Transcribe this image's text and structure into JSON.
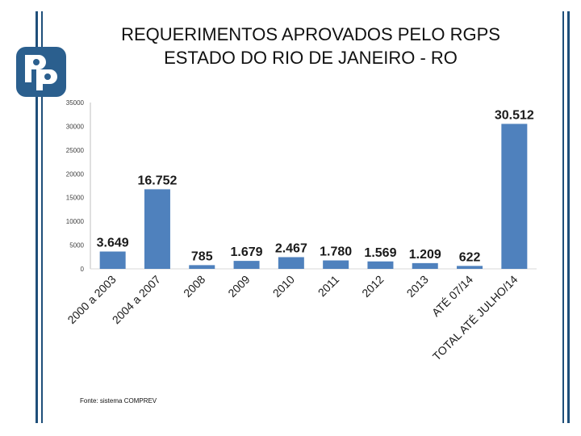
{
  "slide": {
    "title_line1": "REQUERIMENTOS APROVADOS PELO RGPS",
    "title_line2": "ESTADO DO RIO DE JANEIRO - RO",
    "source": "Fonte: sistema COMPREV"
  },
  "logo": {
    "icon": "pp-brand-logo",
    "color": "#2b5f8e"
  },
  "colors": {
    "bar": "#4f81bd",
    "accent": "#1f4f7a"
  },
  "chart_data": {
    "type": "bar",
    "categories": [
      "2000 a 2003",
      "2004 a 2007",
      "2008",
      "2009",
      "2010",
      "2011",
      "2012",
      "2013",
      "ATÉ 07/14",
      "TOTAL ATÉ JULHO/14"
    ],
    "values": [
      3649,
      16752,
      785,
      1679,
      2467,
      1780,
      1569,
      1209,
      622,
      30512
    ],
    "value_labels": [
      "3.649",
      "16.752",
      "785",
      "1.679",
      "2.467",
      "1.780",
      "1.569",
      "1.209",
      "622",
      "30.512"
    ],
    "yticks": [
      0,
      5000,
      10000,
      15000,
      20000,
      25000,
      30000,
      35000
    ],
    "ylim": [
      0,
      35000
    ],
    "grid": false,
    "legend": "none"
  }
}
